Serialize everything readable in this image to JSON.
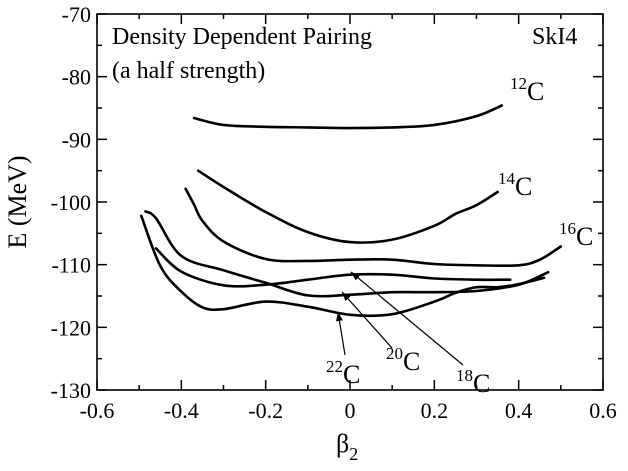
{
  "chart_data": {
    "type": "line",
    "title": "",
    "xlabel": "β",
    "xlabel_sub": "2",
    "ylabel": "E  (MeV)",
    "xlim": [
      -0.6,
      0.6
    ],
    "ylim": [
      -130,
      -70
    ],
    "x_ticks": [
      -0.6,
      -0.4,
      -0.2,
      0,
      0.2,
      0.4,
      0.6
    ],
    "x_tick_labels": [
      "-0.6",
      "-0.4",
      "-0.2",
      "0",
      "0.2",
      "0.4",
      "0.6"
    ],
    "y_ticks": [
      -130,
      -120,
      -110,
      -100,
      -90,
      -80,
      -70
    ],
    "y_tick_labels": [
      "-130",
      "-120",
      "-110",
      "-100",
      "-90",
      "-80",
      "-70"
    ],
    "grid": false,
    "annotations": {
      "line1": "Density Dependent Pairing",
      "line2": "(a half strength)",
      "force": "SkI4"
    },
    "series": [
      {
        "mass": "12",
        "element": "C",
        "x": [
          -0.37,
          -0.3,
          -0.2,
          -0.1,
          0,
          0.1,
          0.2,
          0.3,
          0.36
        ],
        "y": [
          -86.6,
          -87.7,
          -88.0,
          -88.1,
          -88.2,
          -88.1,
          -87.7,
          -86.3,
          -84.6
        ]
      },
      {
        "mass": "14",
        "element": "C",
        "x": [
          -0.36,
          -0.3,
          -0.2,
          -0.1,
          0,
          0.1,
          0.2,
          0.25,
          0.3,
          0.35
        ],
        "y": [
          -95.0,
          -97.6,
          -101.6,
          -104.8,
          -106.4,
          -106.0,
          -103.8,
          -101.9,
          -100.5,
          -98.4
        ]
      },
      {
        "mass": "16",
        "element": "C",
        "x": [
          -0.39,
          -0.37,
          -0.35,
          -0.3,
          -0.2,
          -0.1,
          0,
          0.1,
          0.2,
          0.3,
          0.4,
          0.45,
          0.5
        ],
        "y": [
          -97.9,
          -100.4,
          -103.0,
          -106.3,
          -109.1,
          -109.4,
          -109.2,
          -109.2,
          -109.9,
          -110.1,
          -110.1,
          -109.2,
          -107.1
        ]
      },
      {
        "mass": "18",
        "element": "C",
        "x": [
          -0.46,
          -0.4,
          -0.3,
          -0.2,
          -0.1,
          0,
          0.1,
          0.2,
          0.3,
          0.38
        ],
        "y": [
          -107.4,
          -111.1,
          -113.3,
          -113.2,
          -112.4,
          -111.6,
          -111.6,
          -112.2,
          -112.4,
          -112.4
        ]
      },
      {
        "mass": "20",
        "element": "C",
        "x": [
          -0.485,
          -0.46,
          -0.4,
          -0.3,
          -0.2,
          -0.1,
          0,
          0.1,
          0.2,
          0.3,
          0.4,
          0.47
        ],
        "y": [
          -101.5,
          -102.6,
          -108.6,
          -110.9,
          -112.9,
          -114.9,
          -114.8,
          -114.4,
          -114.4,
          -114.2,
          -113.2,
          -111.2
        ]
      },
      {
        "mass": "22",
        "element": "C",
        "x": [
          -0.495,
          -0.45,
          -0.4,
          -0.35,
          -0.3,
          -0.2,
          -0.1,
          0,
          0.1,
          0.2,
          0.25,
          0.3,
          0.35,
          0.4,
          0.46
        ],
        "y": [
          -102.2,
          -110.2,
          -114.3,
          -116.8,
          -117.1,
          -115.9,
          -116.7,
          -118.0,
          -117.9,
          -115.9,
          -114.5,
          -113.6,
          -113.6,
          -113.1,
          -112.1
        ]
      }
    ]
  }
}
